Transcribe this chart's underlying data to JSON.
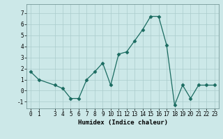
{
  "x": [
    0,
    1,
    3,
    4,
    5,
    6,
    7,
    8,
    9,
    10,
    11,
    12,
    13,
    14,
    15,
    16,
    17,
    18,
    19,
    20,
    21,
    22,
    23
  ],
  "y": [
    1.7,
    1.0,
    0.5,
    0.2,
    -0.7,
    -0.7,
    1.0,
    1.7,
    2.5,
    0.5,
    3.3,
    3.5,
    4.5,
    5.5,
    6.7,
    6.7,
    4.1,
    -1.3,
    0.5,
    -0.7,
    0.5,
    0.5,
    0.5
  ],
  "xlabel": "Humidex (Indice chaleur)",
  "xlim": [
    -0.5,
    23.5
  ],
  "ylim": [
    -1.6,
    7.8
  ],
  "yticks": [
    -1,
    0,
    1,
    2,
    3,
    4,
    5,
    6,
    7
  ],
  "xticks": [
    0,
    1,
    3,
    4,
    5,
    6,
    7,
    8,
    9,
    10,
    11,
    12,
    13,
    14,
    15,
    16,
    17,
    18,
    19,
    20,
    21,
    22,
    23
  ],
  "line_color": "#1a6b60",
  "marker": "D",
  "marker_size": 2.5,
  "bg_color": "#cce8e8",
  "grid_color": "#aacccc",
  "label_fontsize": 6.5,
  "tick_fontsize": 5.5,
  "fig_width": 3.2,
  "fig_height": 2.0,
  "dpi": 100
}
